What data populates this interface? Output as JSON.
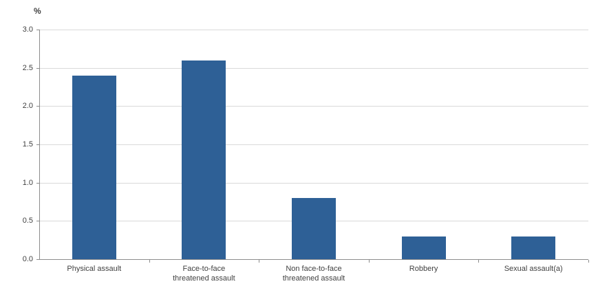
{
  "chart_data": {
    "type": "bar",
    "title": "",
    "ylabel": "%",
    "xlabel": "",
    "categories": [
      "Physical assault",
      "Face-to-face\nthreatened assault",
      "Non face-to-face\nthreatened assault",
      "Robbery",
      "Sexual assault(a)"
    ],
    "values": [
      2.4,
      2.6,
      0.8,
      0.3,
      0.3
    ],
    "ylim": [
      0,
      3.0
    ],
    "ytick_labels": [
      "0.0",
      "0.5",
      "1.0",
      "1.5",
      "2.0",
      "2.5",
      "3.0"
    ],
    "grid": true,
    "legend_position": "none",
    "colors": {
      "bar": "#2e6096",
      "gridline": "#d9d9d9",
      "axis": "#8c8c8c",
      "text": "#404040"
    }
  }
}
